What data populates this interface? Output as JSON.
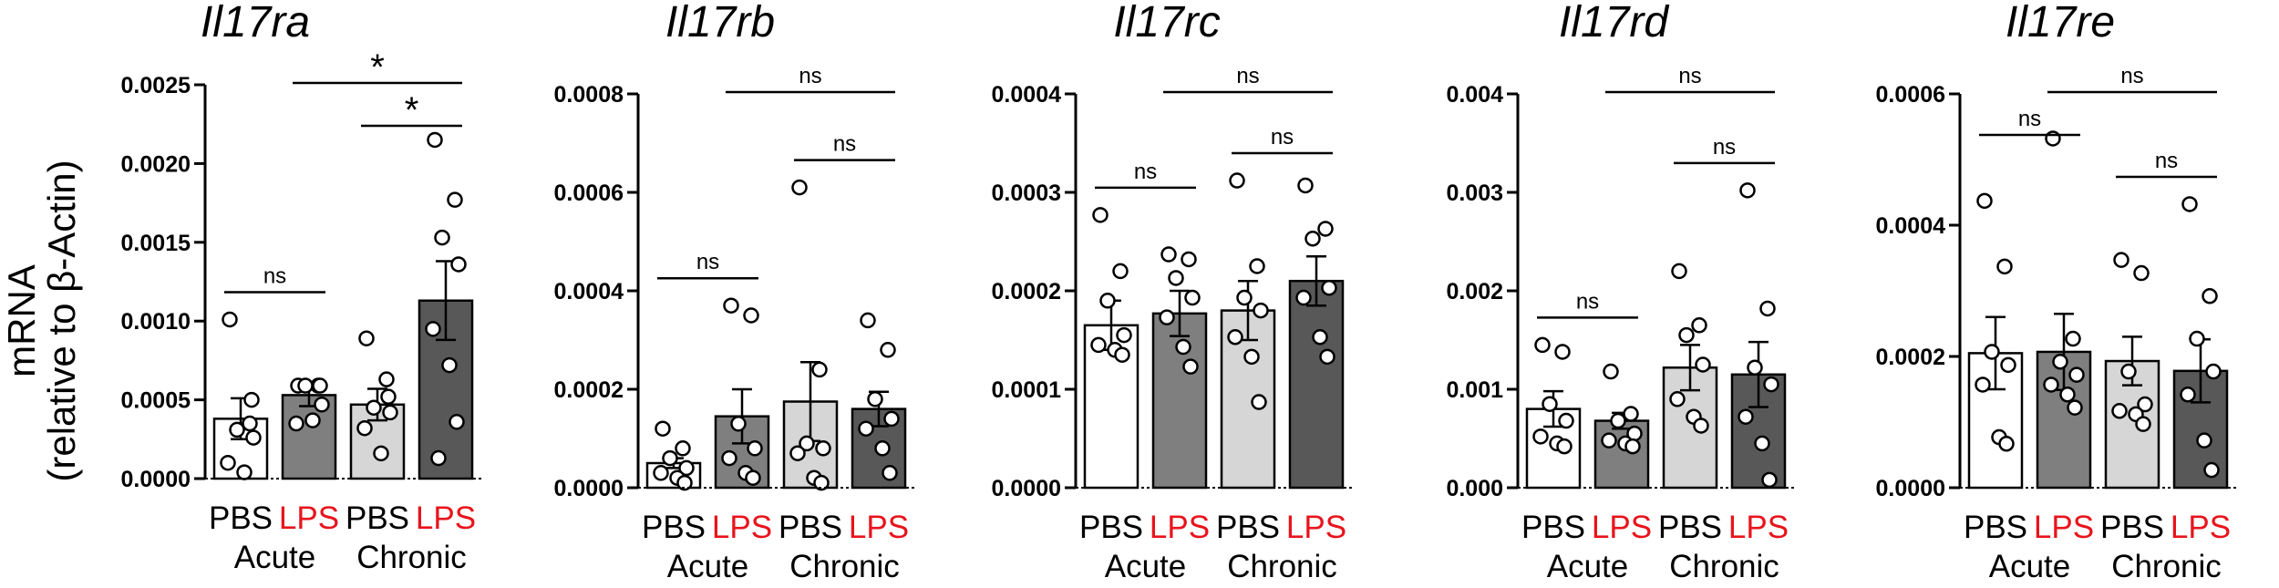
{
  "y_axis_label_line1": "mRNA",
  "y_axis_label_line2": "(relative to β-Actin)",
  "colors": {
    "pbs_label": "#000000",
    "lps_label": "#e8141c",
    "bar_acute_pbs": "#ffffff",
    "bar_acute_lps": "#7f7f7f",
    "bar_chronic_pbs": "#d6d6d6",
    "bar_chronic_lps": "#585858"
  },
  "chart_data": [
    {
      "type": "bar",
      "title": "Il17ra",
      "ylim": [
        0,
        0.0025
      ],
      "yticks": [
        "0.0000",
        "0.0005",
        "0.0010",
        "0.0015",
        "0.0020",
        "0.0025"
      ],
      "categories": [
        "PBS",
        "LPS",
        "PBS",
        "LPS"
      ],
      "groups": [
        "Acute",
        "Chronic"
      ],
      "series": [
        {
          "name": "Acute PBS",
          "mean": 0.00038,
          "sem": 0.00013,
          "points": [
            0.00101,
            0.00035,
            0.00031,
            0.00026,
            0.0001,
            4e-05,
            0.0005
          ]
        },
        {
          "name": "Acute LPS",
          "mean": 0.00053,
          "sem": 7e-05,
          "points": [
            0.00059,
            0.00059,
            0.00059,
            0.00047,
            0.00035,
            0.00037,
            0.00059
          ]
        },
        {
          "name": "Chronic PBS",
          "mean": 0.00047,
          "sem": 0.0001,
          "points": [
            0.00089,
            0.00063,
            0.00045,
            0.00042,
            0.00032,
            0.00016,
            0.00052
          ]
        },
        {
          "name": "Chronic LPS",
          "mean": 0.00113,
          "sem": 0.00025,
          "points": [
            0.00215,
            0.00177,
            0.00153,
            0.00136,
            0.00095,
            0.00072,
            0.00036,
            0.00013
          ]
        }
      ],
      "comparisons": [
        {
          "from": 0,
          "to": 1,
          "label": "ns"
        },
        {
          "from": 2,
          "to": 3,
          "label": "*"
        },
        {
          "from": 1,
          "to": 3,
          "label": "*"
        }
      ]
    },
    {
      "type": "bar",
      "title": "Il17rb",
      "ylim": [
        0,
        0.0008
      ],
      "yticks": [
        "0.0000",
        "0.0002",
        "0.0004",
        "0.0006",
        "0.0008"
      ],
      "categories": [
        "PBS",
        "LPS",
        "PBS",
        "LPS"
      ],
      "groups": [
        "Acute",
        "Chronic"
      ],
      "series": [
        {
          "name": "Acute PBS",
          "mean": 5e-05,
          "sem": 1e-05,
          "points": [
            0.00012,
            8e-05,
            6e-05,
            4e-05,
            3e-05,
            2e-05,
            1e-05
          ]
        },
        {
          "name": "Acute LPS",
          "mean": 0.000145,
          "sem": 5.5e-05,
          "points": [
            0.00037,
            0.00035,
            0.00013,
            8e-05,
            6e-05,
            3e-05,
            2e-05
          ]
        },
        {
          "name": "Chronic PBS",
          "mean": 0.000175,
          "sem": 8e-05,
          "points": [
            0.00061,
            0.00024,
            9e-05,
            8e-05,
            7e-05,
            2e-05,
            1e-05
          ]
        },
        {
          "name": "Chronic LPS",
          "mean": 0.00016,
          "sem": 3.5e-05,
          "points": [
            0.00034,
            0.00028,
            0.00018,
            0.00014,
            0.00012,
            8e-05,
            3e-05
          ]
        }
      ],
      "comparisons": [
        {
          "from": 0,
          "to": 1,
          "label": "ns"
        },
        {
          "from": 2,
          "to": 3,
          "label": "ns"
        },
        {
          "from": 1,
          "to": 3,
          "label": "ns"
        }
      ]
    },
    {
      "type": "bar",
      "title": "Il17rc",
      "ylim": [
        0,
        0.0004
      ],
      "yticks": [
        "0.0000",
        "0.0001",
        "0.0002",
        "0.0003",
        "0.0004"
      ],
      "categories": [
        "PBS",
        "LPS",
        "PBS",
        "LPS"
      ],
      "groups": [
        "Acute",
        "Chronic"
      ],
      "series": [
        {
          "name": "Acute PBS",
          "mean": 0.000165,
          "sem": 2.5e-05,
          "points": [
            0.000277,
            0.00022,
            0.00019,
            0.000155,
            0.000145,
            0.00014,
            0.000135
          ]
        },
        {
          "name": "Acute LPS",
          "mean": 0.000177,
          "sem": 2.3e-05,
          "points": [
            0.000237,
            0.000232,
            0.000213,
            0.000193,
            0.000173,
            0.000143,
            0.000123
          ]
        },
        {
          "name": "Chronic PBS",
          "mean": 0.00018,
          "sem": 3e-05,
          "points": [
            0.000312,
            0.000225,
            0.000193,
            0.00018,
            0.000153,
            0.000133,
            8.7e-05
          ]
        },
        {
          "name": "Chronic LPS",
          "mean": 0.00021,
          "sem": 2.5e-05,
          "points": [
            0.000307,
            0.000263,
            0.000253,
            0.000203,
            0.000193,
            0.000153,
            0.000133
          ]
        }
      ],
      "comparisons": [
        {
          "from": 0,
          "to": 1,
          "label": "ns"
        },
        {
          "from": 2,
          "to": 3,
          "label": "ns"
        },
        {
          "from": 1,
          "to": 3,
          "label": "ns"
        }
      ]
    },
    {
      "type": "bar",
      "title": "Il17rd",
      "ylim": [
        0,
        0.004
      ],
      "yticks": [
        "0.000",
        "0.001",
        "0.002",
        "0.003",
        "0.004"
      ],
      "categories": [
        "PBS",
        "LPS",
        "PBS",
        "LPS"
      ],
      "groups": [
        "Acute",
        "Chronic"
      ],
      "series": [
        {
          "name": "Acute PBS",
          "mean": 0.0008,
          "sem": 0.00018,
          "points": [
            0.00145,
            0.00138,
            0.00085,
            0.00068,
            0.00052,
            0.00045,
            0.00042
          ]
        },
        {
          "name": "Acute LPS",
          "mean": 0.00068,
          "sem": 8e-05,
          "points": [
            0.00118,
            0.00075,
            0.00068,
            0.00055,
            0.00048,
            0.00045,
            0.00042
          ]
        },
        {
          "name": "Chronic PBS",
          "mean": 0.00122,
          "sem": 0.00023,
          "points": [
            0.0022,
            0.00165,
            0.00155,
            0.00125,
            0.0009,
            0.00072,
            0.00063
          ]
        },
        {
          "name": "Chronic LPS",
          "mean": 0.00115,
          "sem": 0.00033,
          "points": [
            0.00302,
            0.00182,
            0.00122,
            0.00105,
            0.00072,
            0.00045,
            8e-05
          ]
        }
      ],
      "comparisons": [
        {
          "from": 0,
          "to": 1,
          "label": "ns"
        },
        {
          "from": 2,
          "to": 3,
          "label": "ns"
        },
        {
          "from": 1,
          "to": 3,
          "label": "ns"
        }
      ]
    },
    {
      "type": "bar",
      "title": "Il17re",
      "ylim": [
        0,
        0.0006
      ],
      "yticks": [
        "0.0000",
        "0.0002",
        "0.0004",
        "0.0006"
      ],
      "categories": [
        "PBS",
        "LPS",
        "PBS",
        "LPS"
      ],
      "groups": [
        "Acute",
        "Chronic"
      ],
      "series": [
        {
          "name": "Acute PBS",
          "mean": 0.000205,
          "sem": 5.5e-05,
          "points": [
            0.000437,
            0.000337,
            0.000207,
            0.000187,
            0.000157,
            7.7e-05,
            6.7e-05
          ]
        },
        {
          "name": "Acute LPS",
          "mean": 0.000207,
          "sem": 5.8e-05,
          "points": [
            0.000532,
            0.000227,
            0.000192,
            0.000172,
            0.000157,
            0.000142,
            0.000122
          ]
        },
        {
          "name": "Chronic PBS",
          "mean": 0.000193,
          "sem": 3.7e-05,
          "points": [
            0.000347,
            0.000327,
            0.000177,
            0.000127,
            0.000117,
            0.000112,
            9.7e-05
          ]
        },
        {
          "name": "Chronic LPS",
          "mean": 0.000178,
          "sem": 4.8e-05,
          "points": [
            0.000432,
            0.000292,
            0.000227,
            0.000177,
            0.000142,
            7.2e-05,
            2.7e-05
          ]
        }
      ],
      "comparisons": [
        {
          "from": 0,
          "to": 1,
          "label": "ns"
        },
        {
          "from": 2,
          "to": 3,
          "label": "ns"
        },
        {
          "from": 1,
          "to": 3,
          "label": "ns"
        }
      ]
    }
  ]
}
